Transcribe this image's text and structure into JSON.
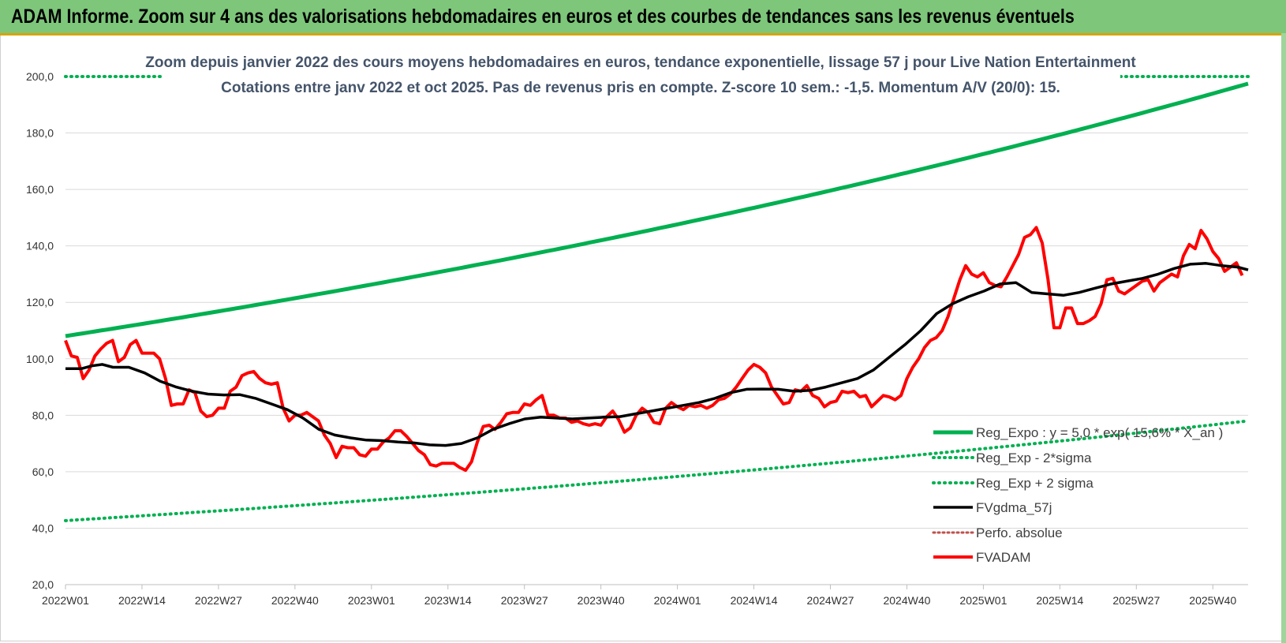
{
  "header": {
    "title": "ADAM Informe. Zoom sur 4 ans des valorisations hebdomadaires en euros et des courbes de tendances sans les revenus éventuels"
  },
  "chart_data": {
    "type": "line",
    "title": "Zoom depuis janvier 2022 des cours moyens hebdomadaires en euros, tendance exponentielle, lissage 57 j pour Live Nation Entertainment",
    "subtitle": "Cotations entre janv 2022 et oct 2025. Pas de revenus pris en compte. Z-score 10 sem.: -1,5. Momentum A/V (20/0): 15.",
    "ylim": [
      20,
      200
    ],
    "y_ticks": [
      "20,0",
      "40,0",
      "60,0",
      "80,0",
      "100,0",
      "120,0",
      "140,0",
      "160,0",
      "180,0",
      "200,0"
    ],
    "x_ticks": [
      "2022W01",
      "2022W14",
      "2022W27",
      "2022W40",
      "2023W01",
      "2023W14",
      "2023W27",
      "2023W40",
      "2024W01",
      "2024W14",
      "2024W27",
      "2024W40",
      "2025W01",
      "2025W14",
      "2025W27",
      "2025W40"
    ],
    "grid": true,
    "legend_position": "bottom-right",
    "colors": {
      "trend": "#00b050",
      "smooth": "#000000",
      "price": "#ff0000",
      "perf": "#c0504d"
    },
    "regression": {
      "base": 5.0,
      "rate": 0.156,
      "x_an_start": 19.7,
      "sigma_low_factor": 0.395,
      "sigma_high_factor": 2.54
    },
    "series": [
      {
        "name": "Reg_Expo : y = 5,0 * exp( 15,6% * X_an )",
        "style": "trend"
      },
      {
        "name": "Reg_Exp - 2*sigma",
        "style": "trend-low"
      },
      {
        "name": "Reg_Exp + 2 sigma",
        "style": "trend-high"
      },
      {
        "name": "FVgdma_57j",
        "style": "smooth",
        "points": [
          [
            0,
            96.5
          ],
          [
            3,
            96.5
          ],
          [
            5,
            97.5
          ],
          [
            7,
            98
          ],
          [
            9,
            97
          ],
          [
            12,
            97
          ],
          [
            15,
            95
          ],
          [
            18,
            92
          ],
          [
            21,
            90
          ],
          [
            24,
            88.5
          ],
          [
            27,
            87.5
          ],
          [
            30,
            87.2
          ],
          [
            33,
            87.3
          ],
          [
            36,
            86
          ],
          [
            39,
            84
          ],
          [
            42,
            82
          ],
          [
            45,
            79
          ],
          [
            48,
            75
          ],
          [
            51,
            73
          ],
          [
            54,
            72
          ],
          [
            57,
            71.2
          ],
          [
            60,
            71
          ],
          [
            63,
            70.5
          ],
          [
            66,
            70.2
          ],
          [
            69,
            69.5
          ],
          [
            72,
            69.3
          ],
          [
            75,
            70
          ],
          [
            78,
            72
          ],
          [
            81,
            75
          ],
          [
            84,
            77
          ],
          [
            87,
            78.7
          ],
          [
            90,
            79.3
          ],
          [
            93,
            79
          ],
          [
            96,
            78.7
          ],
          [
            99,
            79
          ],
          [
            102,
            79.3
          ],
          [
            105,
            79.5
          ],
          [
            108,
            80.5
          ],
          [
            111,
            81.5
          ],
          [
            114,
            82.5
          ],
          [
            117,
            83.5
          ],
          [
            120,
            84.5
          ],
          [
            123,
            86
          ],
          [
            126,
            88
          ],
          [
            129,
            89.2
          ],
          [
            132,
            89.3
          ],
          [
            135,
            89.2
          ],
          [
            138,
            88.5
          ],
          [
            141,
            88.8
          ],
          [
            144,
            90
          ],
          [
            147,
            91.5
          ],
          [
            150,
            93
          ],
          [
            153,
            96
          ],
          [
            156,
            100.5
          ],
          [
            159,
            105
          ],
          [
            162,
            110
          ],
          [
            165,
            116
          ],
          [
            168,
            119.5
          ],
          [
            171,
            122
          ],
          [
            174,
            124
          ],
          [
            177,
            126.5
          ],
          [
            180,
            127
          ],
          [
            183,
            123.5
          ],
          [
            186,
            123
          ],
          [
            189,
            122.5
          ],
          [
            192,
            123.5
          ],
          [
            195,
            125
          ],
          [
            198,
            126.5
          ],
          [
            201,
            127.5
          ],
          [
            204,
            128.5
          ],
          [
            207,
            130
          ],
          [
            210,
            132
          ],
          [
            213,
            133.5
          ],
          [
            216,
            133.8
          ],
          [
            219,
            133
          ],
          [
            222,
            132.5
          ],
          [
            224,
            131.5
          ]
        ]
      },
      {
        "name": "Perfo. absolue",
        "style": "perf"
      },
      {
        "name": "FVADAM",
        "style": "price",
        "points": [
          [
            0,
            106.5
          ],
          [
            1,
            101
          ],
          [
            2,
            100.5
          ],
          [
            3,
            93
          ],
          [
            4,
            96
          ],
          [
            5,
            101
          ],
          [
            6,
            103.5
          ],
          [
            7,
            105.5
          ],
          [
            8,
            106.5
          ],
          [
            9,
            99
          ],
          [
            10,
            100.5
          ],
          [
            11,
            105
          ],
          [
            12,
            106.5
          ],
          [
            13,
            102
          ],
          [
            14,
            102
          ],
          [
            15,
            102
          ],
          [
            16,
            100
          ],
          [
            17,
            93
          ],
          [
            18,
            83.5
          ],
          [
            19,
            84
          ],
          [
            20,
            84
          ],
          [
            21,
            89
          ],
          [
            22,
            88
          ],
          [
            23,
            81.5
          ],
          [
            24,
            79.5
          ],
          [
            25,
            80
          ],
          [
            26,
            82.5
          ],
          [
            27,
            82.5
          ],
          [
            28,
            88.5
          ],
          [
            29,
            90
          ],
          [
            30,
            94
          ],
          [
            31,
            95
          ],
          [
            32,
            95.5
          ],
          [
            33,
            93
          ],
          [
            34,
            91.5
          ],
          [
            35,
            91
          ],
          [
            36,
            91.5
          ],
          [
            37,
            82.5
          ],
          [
            38,
            78
          ],
          [
            39,
            80
          ],
          [
            40,
            80
          ],
          [
            41,
            81
          ],
          [
            42,
            79.5
          ],
          [
            43,
            78
          ],
          [
            44,
            73
          ],
          [
            45,
            70
          ],
          [
            46,
            65
          ],
          [
            47,
            69
          ],
          [
            48,
            68.5
          ],
          [
            49,
            68.5
          ],
          [
            50,
            66
          ],
          [
            51,
            65.5
          ],
          [
            52,
            68
          ],
          [
            53,
            68
          ],
          [
            54,
            70.5
          ],
          [
            55,
            72
          ],
          [
            56,
            74.5
          ],
          [
            57,
            74.5
          ],
          [
            58,
            72.5
          ],
          [
            59,
            70
          ],
          [
            60,
            67.5
          ],
          [
            61,
            66
          ],
          [
            62,
            62.5
          ],
          [
            63,
            62
          ],
          [
            64,
            63
          ],
          [
            65,
            63
          ],
          [
            66,
            63
          ],
          [
            67,
            61.5
          ],
          [
            68,
            60.5
          ],
          [
            69,
            63.5
          ],
          [
            70,
            70.5
          ],
          [
            71,
            76
          ],
          [
            72,
            76.5
          ],
          [
            73,
            75
          ],
          [
            74,
            77.5
          ],
          [
            75,
            80.5
          ],
          [
            76,
            81
          ],
          [
            77,
            81
          ],
          [
            78,
            84
          ],
          [
            79,
            83.5
          ],
          [
            80,
            85.5
          ],
          [
            81,
            87
          ],
          [
            82,
            80
          ],
          [
            83,
            80
          ],
          [
            84,
            79
          ],
          [
            85,
            79
          ],
          [
            86,
            77.5
          ],
          [
            87,
            78
          ],
          [
            88,
            77
          ],
          [
            89,
            76.5
          ],
          [
            90,
            77
          ],
          [
            91,
            76.5
          ],
          [
            92,
            79.5
          ],
          [
            93,
            81.5
          ],
          [
            94,
            78.5
          ],
          [
            95,
            74
          ],
          [
            96,
            75.5
          ],
          [
            97,
            80
          ],
          [
            98,
            82.5
          ],
          [
            99,
            81
          ],
          [
            100,
            77.5
          ],
          [
            101,
            77
          ],
          [
            102,
            82.5
          ],
          [
            103,
            84.5
          ],
          [
            104,
            83
          ],
          [
            105,
            82
          ],
          [
            106,
            83.5
          ],
          [
            107,
            83
          ],
          [
            108,
            83.5
          ],
          [
            109,
            82.5
          ],
          [
            110,
            83.5
          ],
          [
            111,
            85.5
          ],
          [
            112,
            86
          ],
          [
            113,
            87.5
          ],
          [
            114,
            90
          ],
          [
            115,
            93
          ],
          [
            116,
            96
          ],
          [
            117,
            98
          ],
          [
            118,
            97
          ],
          [
            119,
            95
          ],
          [
            120,
            90
          ],
          [
            121,
            87
          ],
          [
            122,
            84
          ],
          [
            123,
            84.5
          ],
          [
            124,
            89
          ],
          [
            125,
            88.5
          ],
          [
            126,
            90.5
          ],
          [
            127,
            87
          ],
          [
            128,
            86
          ],
          [
            129,
            83
          ],
          [
            130,
            84.5
          ],
          [
            131,
            85
          ],
          [
            132,
            88.5
          ],
          [
            133,
            88
          ],
          [
            134,
            88.5
          ],
          [
            135,
            86.5
          ],
          [
            136,
            87
          ],
          [
            137,
            83
          ],
          [
            138,
            85
          ],
          [
            139,
            87
          ],
          [
            140,
            86.5
          ],
          [
            141,
            85.5
          ],
          [
            142,
            87
          ],
          [
            143,
            93
          ],
          [
            144,
            97
          ],
          [
            145,
            100
          ],
          [
            146,
            104
          ],
          [
            147,
            106.5
          ],
          [
            148,
            107.5
          ],
          [
            149,
            110
          ],
          [
            150,
            115
          ],
          [
            151,
            121.5
          ],
          [
            152,
            128
          ],
          [
            153,
            133
          ],
          [
            154,
            130
          ],
          [
            155,
            129
          ],
          [
            156,
            130.5
          ],
          [
            157,
            127
          ],
          [
            158,
            126
          ],
          [
            159,
            125.5
          ],
          [
            160,
            129
          ],
          [
            161,
            133
          ],
          [
            162,
            137
          ],
          [
            163,
            143
          ],
          [
            164,
            144
          ],
          [
            165,
            146.5
          ],
          [
            166,
            141
          ],
          [
            167,
            128
          ],
          [
            168,
            111
          ],
          [
            169,
            111
          ],
          [
            170,
            118
          ],
          [
            171,
            118
          ],
          [
            172,
            112.5
          ],
          [
            173,
            112.5
          ],
          [
            174,
            113.5
          ],
          [
            175,
            115
          ],
          [
            176,
            119.5
          ],
          [
            177,
            128
          ],
          [
            178,
            128.5
          ],
          [
            179,
            124
          ],
          [
            180,
            123
          ],
          [
            181,
            124.5
          ],
          [
            182,
            126
          ],
          [
            183,
            127.5
          ],
          [
            184,
            128
          ],
          [
            185,
            124
          ],
          [
            186,
            127
          ],
          [
            187,
            128.5
          ],
          [
            188,
            130
          ],
          [
            189,
            129
          ],
          [
            190,
            136.5
          ],
          [
            191,
            140.5
          ],
          [
            192,
            139
          ],
          [
            193,
            145.5
          ],
          [
            194,
            142.5
          ],
          [
            195,
            138
          ],
          [
            196,
            135.5
          ],
          [
            197,
            131
          ],
          [
            198,
            132.5
          ],
          [
            199,
            134
          ],
          [
            200,
            129.5
          ]
        ]
      }
    ]
  }
}
